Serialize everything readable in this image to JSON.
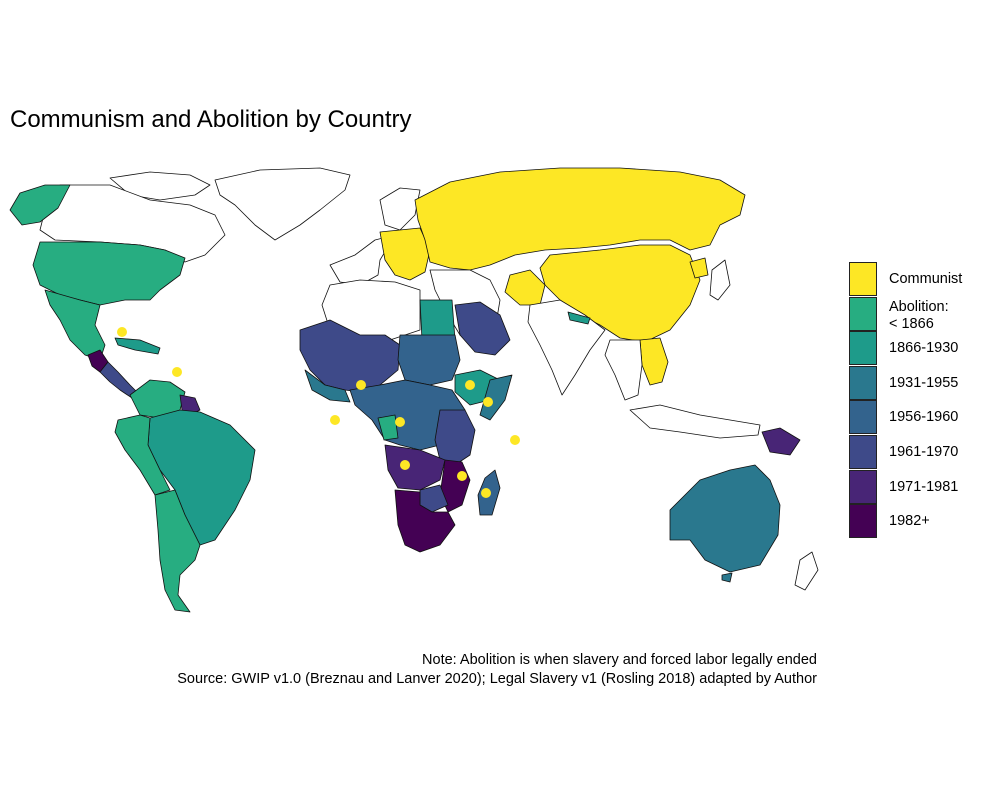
{
  "title": "Communism and Abolition by Country",
  "legend": [
    {
      "label": "Communist",
      "color": "#fde725"
    },
    {
      "label": "Abolition:\n< 1866",
      "color": "#27ad81"
    },
    {
      "label": "1866-1930",
      "color": "#1e9b8a"
    },
    {
      "label": "1931-1955",
      "color": "#2a788e"
    },
    {
      "label": "1956-1960",
      "color": "#33638d"
    },
    {
      "label": "1961-1970",
      "color": "#3e4a89"
    },
    {
      "label": "1971-1981",
      "color": "#482576"
    },
    {
      "label": "1982+",
      "color": "#440154"
    }
  ],
  "note_line1": "Note: Abolition is when slavery and forced labor legally ended",
  "note_line2": "Source: GWIP v1.0 (Breznau and Lanver 2020); Legal Slavery v1 (Rosling 2018) adapted by Author",
  "colors": {
    "communist": "#fde725",
    "pre1866": "#27ad81",
    "y1866_1930": "#1e9b8a",
    "y1931_1955": "#2a788e",
    "y1956_1960": "#33638d",
    "y1961_1970": "#3e4a89",
    "y1971_1981": "#482576",
    "y1982plus": "#440154",
    "nodata": "#ffffff"
  }
}
